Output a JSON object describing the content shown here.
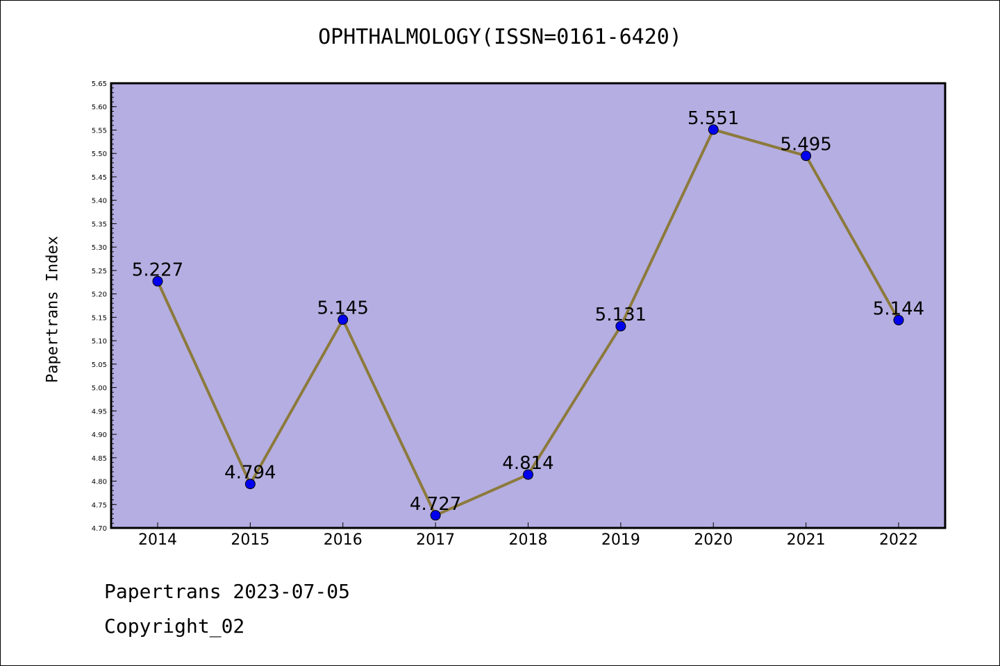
{
  "chart_data": {
    "type": "line",
    "title": "OPHTHALMOLOGY(ISSN=0161-6420)",
    "ylabel": "Papertrans Index",
    "xlabel": "",
    "x": [
      "2014",
      "2015",
      "2016",
      "2017",
      "2018",
      "2019",
      "2020",
      "2021",
      "2022"
    ],
    "series": [
      {
        "values": [
          5.227,
          4.794,
          5.145,
          4.727,
          4.814,
          5.131,
          5.551,
          5.495,
          5.144
        ]
      }
    ],
    "data_labels": [
      "5.227",
      "4.794",
      "5.145",
      "4.727",
      "4.814",
      "5.131",
      "5.551",
      "5.495",
      "5.144"
    ],
    "ylim": [
      4.7,
      5.65
    ],
    "yticks": [
      "4.70",
      "4.75",
      "4.80",
      "4.85",
      "4.90",
      "4.95",
      "5.00",
      "5.05",
      "5.10",
      "5.15",
      "5.20",
      "5.25",
      "5.30",
      "5.35",
      "5.40",
      "5.45",
      "5.50",
      "5.55",
      "5.60",
      "5.65"
    ],
    "grid": false,
    "legend": "none",
    "colors": {
      "plot_bg": "#b5aee2",
      "line": "#8c7a3c",
      "marker": "#0000ee"
    }
  },
  "footer": {
    "line1": "Papertrans 2023-07-05",
    "line2": "Copyright_02"
  }
}
